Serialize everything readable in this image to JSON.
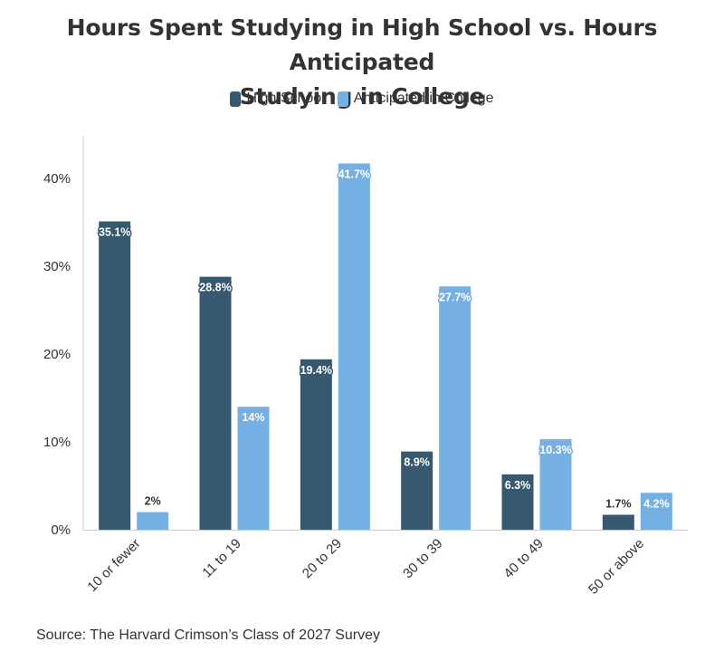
{
  "title_line1": "Hours Spent Studying in High School vs. Hours Anticipated",
  "title_line2": "Studying in College",
  "source": "Source: The Harvard Crimson’s Class of 2027 Survey",
  "colors": {
    "high_school": "#36596f",
    "college": "#75b0e4",
    "axis": "#cccccc",
    "text": "#333333"
  },
  "chart_data": {
    "type": "bar",
    "title": "Hours Spent Studying in High School vs. Hours Anticipated Studying in College",
    "xlabel": "",
    "ylabel": "",
    "categories": [
      "10 or fewer",
      "11 to 19",
      "20 to 29",
      "30 to 39",
      "40 to 49",
      "50 or above"
    ],
    "series": [
      {
        "name": "High School",
        "values": [
          35.1,
          28.8,
          19.4,
          8.9,
          6.3,
          1.7
        ],
        "labels": [
          "35.1%",
          "28.8%",
          "19.4%",
          "8.9%",
          "6.3%",
          "1.7%"
        ]
      },
      {
        "name": "Anticipated in College",
        "values": [
          2,
          14,
          41.7,
          27.7,
          10.3,
          4.2
        ],
        "labels": [
          "2%",
          "14%",
          "41.7%",
          "27.7%",
          "10.3%",
          "4.2%"
        ]
      }
    ],
    "ylim": [
      0,
      45
    ],
    "yticks": [
      0,
      10,
      20,
      30,
      40
    ],
    "ytick_labels": [
      "0%",
      "10%",
      "20%",
      "30%",
      "40%"
    ],
    "grid": false,
    "legend_position": "top-center"
  }
}
